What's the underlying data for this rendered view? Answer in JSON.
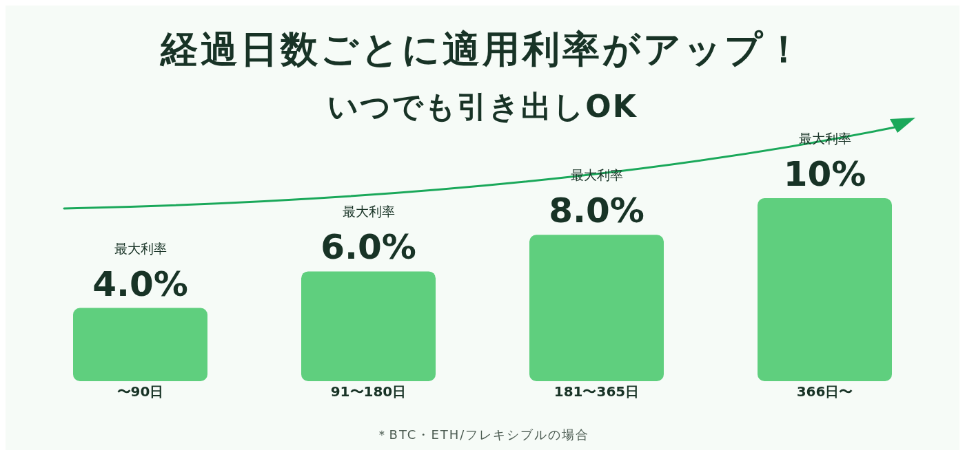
{
  "chart_data": {
    "type": "bar",
    "title": "経過日数ごとに適用利率がアップ！",
    "subtitle": "いつでも引き出しOK",
    "categories": [
      "〜90日",
      "91〜180日",
      "181〜365日",
      "366日〜"
    ],
    "values": [
      4,
      6,
      8,
      10
    ],
    "value_labels": [
      "最大利率\n4.0%",
      "最大利率\n6.0%",
      "最大利率\n8.0%",
      "最大利率\n10%"
    ],
    "color": "#5fcf7e",
    "tick_labels": "x",
    "annotations": [
      "＊BTC・ETH/フレキシブルの場合"
    ]
  }
}
